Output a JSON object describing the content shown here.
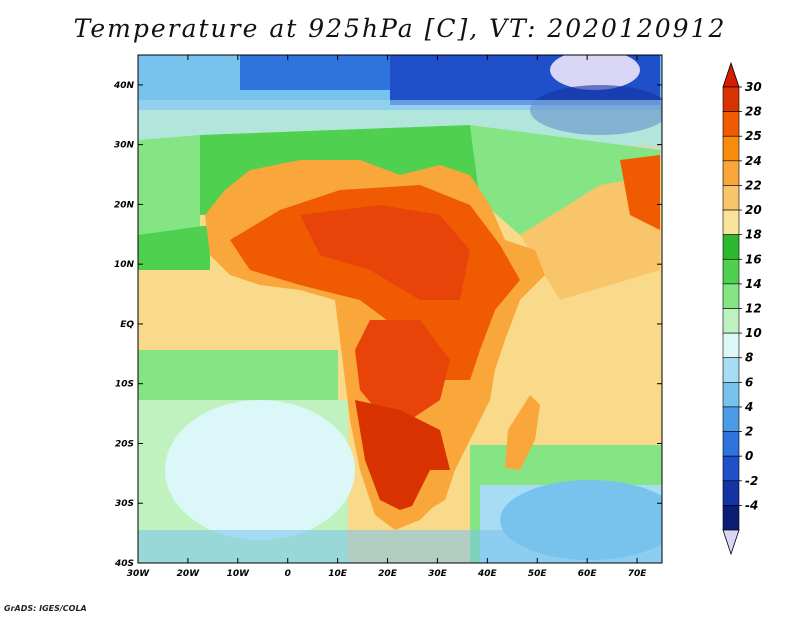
{
  "title": "Temperature at 925hPa [C], VT: 2020120912",
  "credit": "GrADS: IGES/COLA",
  "map": {
    "lon_labels": [
      "30W",
      "20W",
      "10W",
      "0",
      "10E",
      "20E",
      "30E",
      "40E",
      "50E",
      "60E",
      "70E"
    ],
    "lat_labels": [
      "40N",
      "30N",
      "20N",
      "10N",
      "EQ",
      "10S",
      "20S",
      "30S",
      "40S"
    ],
    "lon_range": [
      -30,
      75
    ],
    "lat_range": [
      -40,
      45
    ]
  },
  "colorbar": {
    "levels": [
      "30",
      "28",
      "25",
      "24",
      "22",
      "20",
      "18",
      "16",
      "14",
      "12",
      "10",
      "8",
      "6",
      "4",
      "2",
      "0",
      "-2",
      "-4"
    ],
    "colors": [
      "#d73200",
      "#f05a00",
      "#f88c0c",
      "#f9a63a",
      "#f9c56a",
      "#f9e39a",
      "#2eb82e",
      "#4fd04f",
      "#85e585",
      "#bff2bf",
      "#dcf7f7",
      "#a7dcf2",
      "#78c2ee",
      "#4a9ce6",
      "#2f74dd",
      "#1f4fc9",
      "#1433a4",
      "#0c1d77"
    ],
    "top_color": "#d31c00",
    "bottom_color": "#d9d5f5"
  }
}
